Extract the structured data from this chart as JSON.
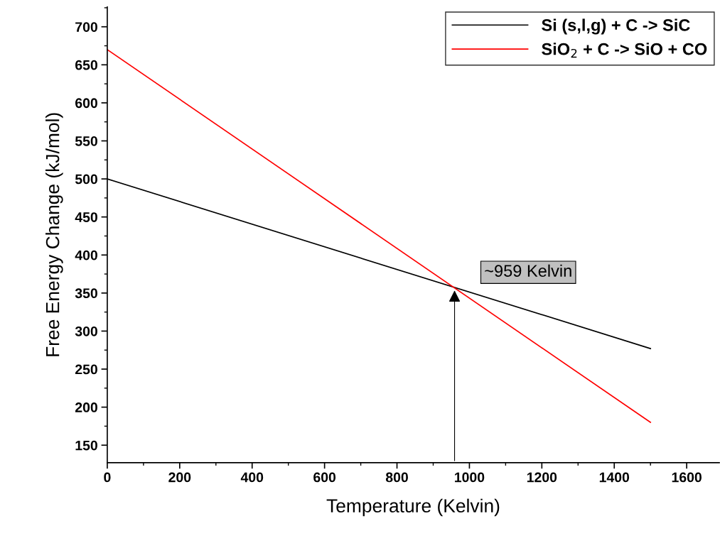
{
  "chart_data": {
    "type": "line",
    "xlabel": "Temperature (Kelvin)",
    "ylabel": "Free Energy Change (kJ/mol)",
    "series": [
      {
        "name": "Si (s,l,g) + C -> SiC",
        "color": "#000000",
        "values": [
          500,
          277
        ]
      },
      {
        "name": "SiO$_{2}$ + C -> SiO + CO",
        "color": "#ff0000",
        "values": [
          670,
          180
        ]
      }
    ],
    "x": [
      0,
      1500
    ],
    "annotations": [
      {
        "text": "~959 Kelvin",
        "x": 959,
        "y": 356
      }
    ],
    "xlim": [
      0,
      1690
    ],
    "ylim": [
      127,
      726
    ],
    "xticks": [
      0,
      200,
      400,
      600,
      800,
      1000,
      1200,
      1400,
      1600
    ],
    "yticks": [
      150,
      200,
      250,
      300,
      350,
      400,
      450,
      500,
      550,
      600,
      650,
      700
    ],
    "grid": false,
    "legend": "top right",
    "marker": "none",
    "line_style": "solid"
  }
}
